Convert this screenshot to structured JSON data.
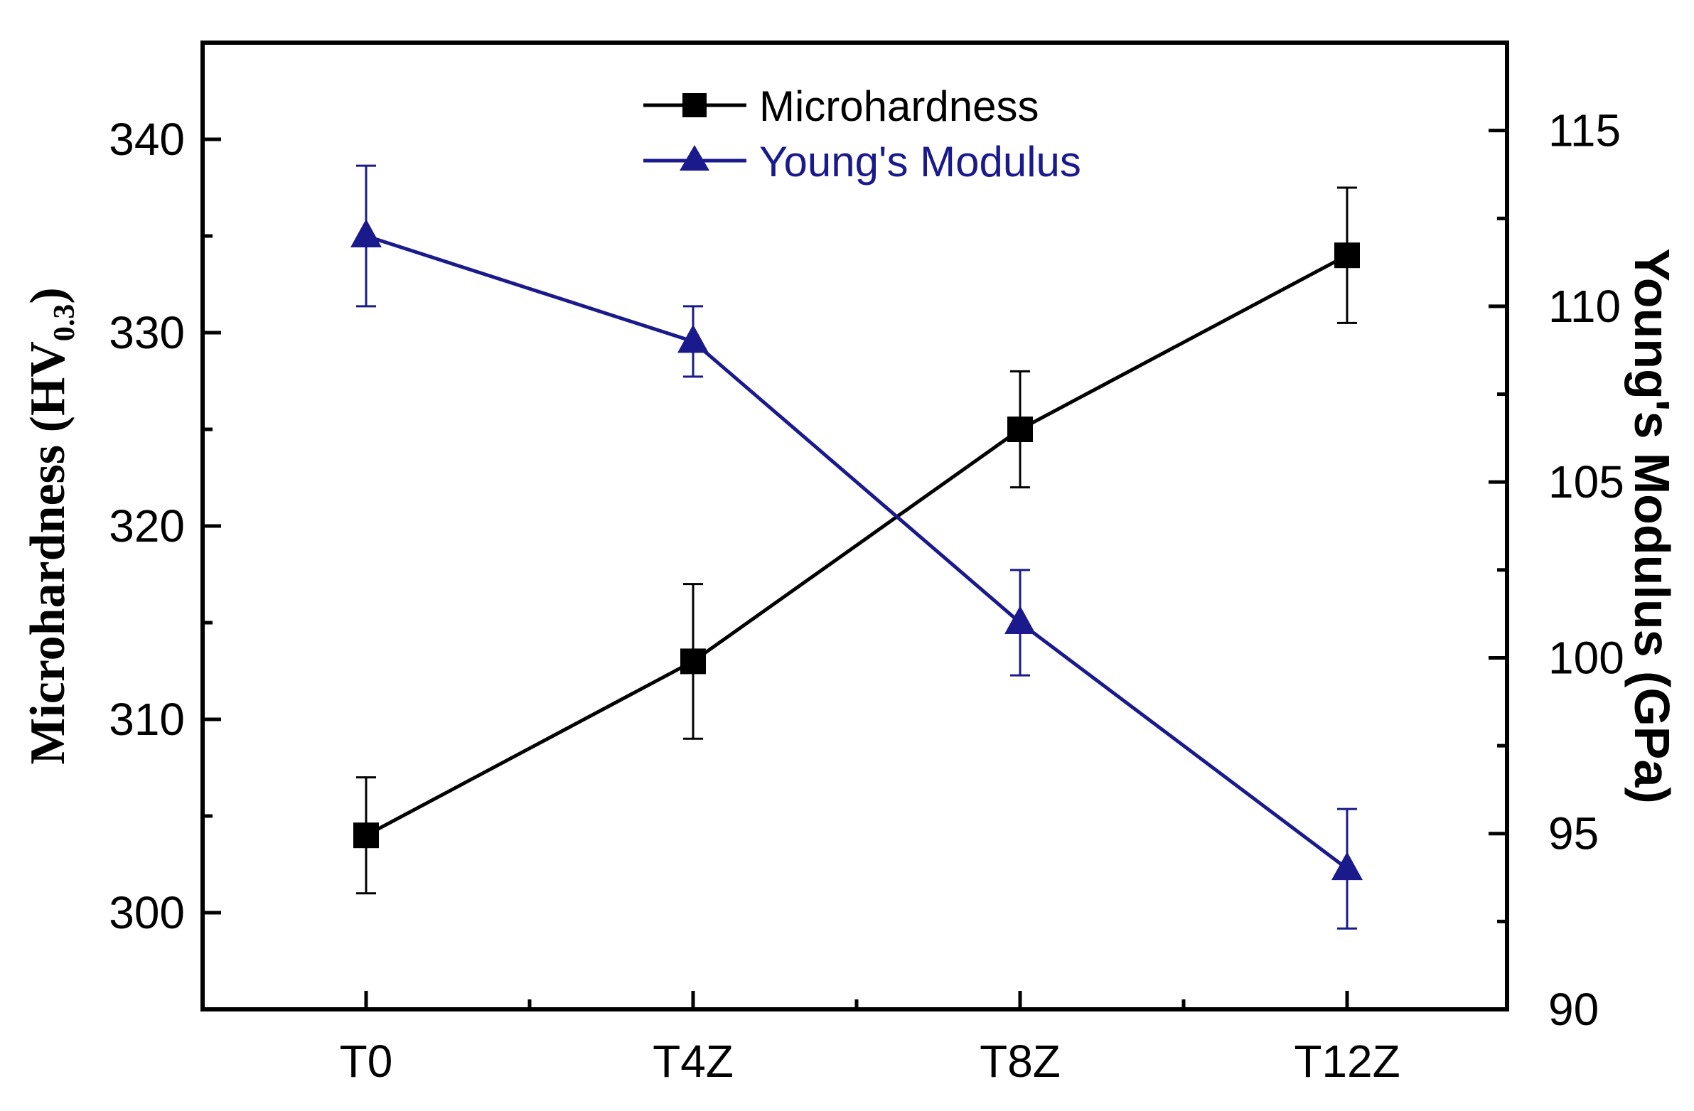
{
  "chart_data": {
    "type": "line",
    "categories": [
      "T0",
      "T4Z",
      "T8Z",
      "T12Z"
    ],
    "series": [
      {
        "name": "Microhardness",
        "axis": "left",
        "color": "#000000",
        "marker": "square",
        "values": [
          304,
          313,
          325,
          334
        ],
        "errors": [
          3,
          4,
          3,
          3.5
        ]
      },
      {
        "name": "Young's Modulus",
        "axis": "right",
        "color": "#1a1a8c",
        "marker": "triangle",
        "values": [
          112,
          109,
          101,
          94
        ],
        "errors": [
          2,
          1,
          1.5,
          1.7
        ]
      }
    ],
    "left_axis": {
      "label_main": "Microhardness (HV",
      "label_sub": "0.3",
      "label_close": ")",
      "range": [
        295,
        345
      ],
      "ticks": [
        300,
        310,
        320,
        330,
        340
      ],
      "tick_labels": [
        "300",
        "310",
        "320",
        "330",
        "340"
      ]
    },
    "right_axis": {
      "label": "Young's Modulus (GPa)",
      "range": [
        90,
        117.5
      ],
      "ticks": [
        90,
        95,
        100,
        105,
        110,
        115
      ],
      "tick_labels": [
        "90",
        "95",
        "100",
        "105",
        "110",
        "115"
      ]
    },
    "legend": {
      "position": "top-center",
      "entries": [
        "Microhardness",
        "Young's Modulus"
      ]
    },
    "grid": false
  }
}
